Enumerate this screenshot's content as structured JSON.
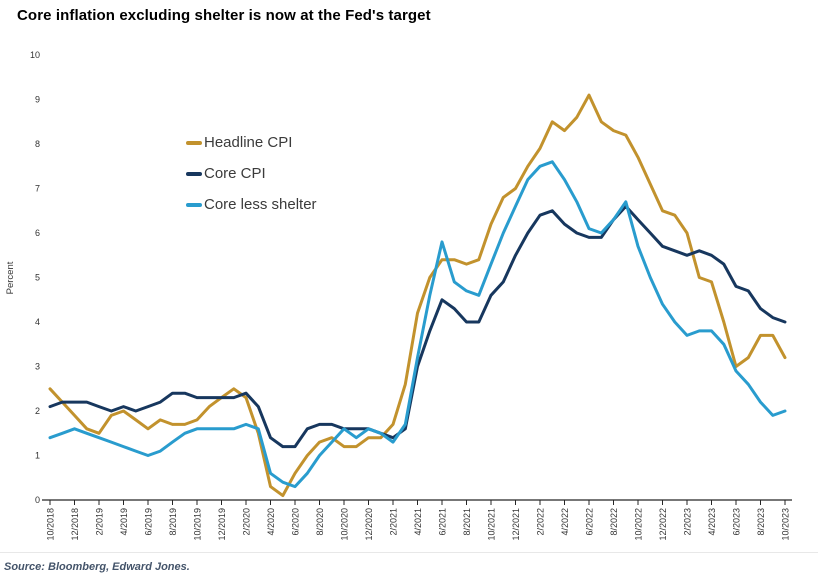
{
  "header": {
    "title": "Core inflation excluding shelter is now at the Fed's target"
  },
  "footer": {
    "source": "Source: Bloomberg, Edward Jones."
  },
  "chart_data": {
    "type": "line",
    "title": "Core inflation excluding shelter is now at the Fed's target",
    "xlabel": "",
    "ylabel": "Percent",
    "ylim": [
      0,
      10
    ],
    "y_ticks": [
      0,
      1,
      2,
      3,
      4,
      5,
      6,
      7,
      8,
      9,
      10
    ],
    "x_range": "10/2018 to 10/2023, monthly points, tick labels every 2 months",
    "x_tick_labels": [
      "10/2018",
      "12/2018",
      "2/2019",
      "4/2019",
      "6/2019",
      "8/2019",
      "10/2019",
      "12/2019",
      "2/2020",
      "4/2020",
      "6/2020",
      "8/2020",
      "10/2020",
      "12/2020",
      "2/2021",
      "4/2021",
      "6/2021",
      "8/2021",
      "10/2021",
      "12/2021",
      "2/2022",
      "4/2022",
      "6/2022",
      "8/2022",
      "10/2022",
      "12/2022",
      "2/2023",
      "4/2023",
      "6/2023",
      "8/2023",
      "10/2023"
    ],
    "grid": false,
    "legend_position": "inset top-left",
    "series": [
      {
        "id": "headline-cpi",
        "name": "Headline CPI",
        "color": "#C2922D",
        "values": [
          2.5,
          2.2,
          1.9,
          1.6,
          1.5,
          1.9,
          2.0,
          1.8,
          1.6,
          1.8,
          1.7,
          1.7,
          1.8,
          2.1,
          2.3,
          2.5,
          2.3,
          1.5,
          0.3,
          0.1,
          0.6,
          1.0,
          1.3,
          1.4,
          1.2,
          1.2,
          1.4,
          1.4,
          1.7,
          2.6,
          4.2,
          5.0,
          5.4,
          5.4,
          5.3,
          5.4,
          6.2,
          6.8,
          7.0,
          7.5,
          7.9,
          8.5,
          8.3,
          8.6,
          9.1,
          8.5,
          8.3,
          8.2,
          7.7,
          7.1,
          6.5,
          6.4,
          6.0,
          5.0,
          4.9,
          4.0,
          3.0,
          3.2,
          3.7,
          3.7,
          3.2
        ]
      },
      {
        "id": "core-cpi",
        "name": "Core CPI",
        "color": "#17375E",
        "values": [
          2.1,
          2.2,
          2.2,
          2.2,
          2.1,
          2.0,
          2.1,
          2.0,
          2.1,
          2.2,
          2.4,
          2.4,
          2.3,
          2.3,
          2.3,
          2.3,
          2.4,
          2.1,
          1.4,
          1.2,
          1.2,
          1.6,
          1.7,
          1.7,
          1.6,
          1.6,
          1.6,
          1.5,
          1.4,
          1.6,
          3.0,
          3.8,
          4.5,
          4.3,
          4.0,
          4.0,
          4.6,
          4.9,
          5.5,
          6.0,
          6.4,
          6.5,
          6.2,
          6.0,
          5.9,
          5.9,
          6.3,
          6.6,
          6.3,
          6.0,
          5.7,
          5.6,
          5.5,
          5.6,
          5.5,
          5.3,
          4.8,
          4.7,
          4.3,
          4.1,
          4.0
        ]
      },
      {
        "id": "core-less-shelter",
        "name": "Core less shelter",
        "color": "#299CCE",
        "values": [
          1.4,
          1.5,
          1.6,
          1.5,
          1.4,
          1.3,
          1.2,
          1.1,
          1.0,
          1.1,
          1.3,
          1.5,
          1.6,
          1.6,
          1.6,
          1.6,
          1.7,
          1.6,
          0.6,
          0.4,
          0.3,
          0.6,
          1.0,
          1.3,
          1.6,
          1.4,
          1.6,
          1.5,
          1.3,
          1.7,
          3.2,
          4.6,
          5.8,
          4.9,
          4.7,
          4.6,
          5.3,
          6.0,
          6.6,
          7.2,
          7.5,
          7.6,
          7.2,
          6.7,
          6.1,
          6.0,
          6.3,
          6.7,
          5.7,
          5.0,
          4.4,
          4.0,
          3.7,
          3.8,
          3.8,
          3.5,
          2.9,
          2.6,
          2.2,
          1.9,
          2.0
        ]
      }
    ]
  }
}
